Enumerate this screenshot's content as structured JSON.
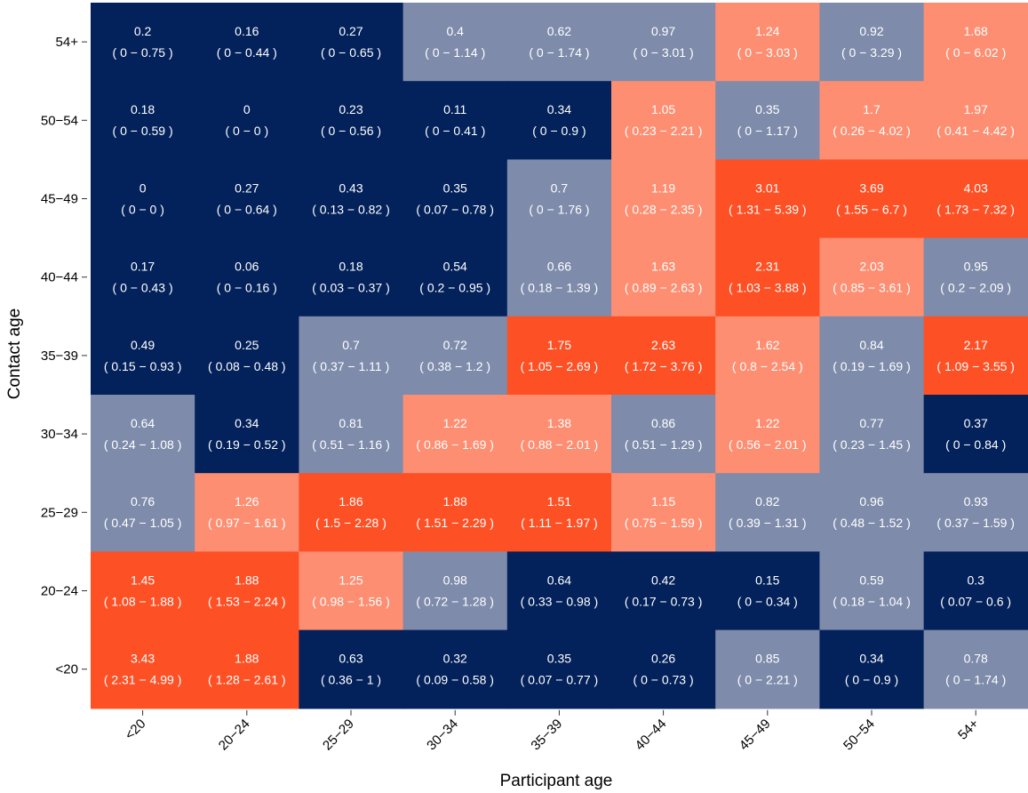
{
  "chart_data": {
    "type": "heatmap",
    "xlabel": "Participant age",
    "ylabel": "Contact age",
    "x_categories": [
      "<20",
      "20−24",
      "25−29",
      "30−34",
      "35−39",
      "40−44",
      "45−49",
      "50−54",
      "54+"
    ],
    "y_categories": [
      "<20",
      "20−24",
      "25−29",
      "30−34",
      "35−39",
      "40−44",
      "45−49",
      "50−54",
      "54+"
    ],
    "palette": {
      "dark": "#03215A",
      "mid": "#7E8BAA",
      "light": "#FD8E72",
      "strong": "#FE5025"
    },
    "rows": [
      {
        "contact_age": "54+",
        "values": [
          0.2,
          0.16,
          0.27,
          0.4,
          0.62,
          0.97,
          1.24,
          0.92,
          1.68
        ],
        "ci": [
          "( 0 − 0.75 )",
          "( 0 − 0.44 )",
          "( 0 − 0.65 )",
          "( 0 − 1.14 )",
          "( 0 − 1.74 )",
          "( 0 − 3.01 )",
          "( 0 − 3.03 )",
          "( 0 − 3.29 )",
          "( 0 − 6.02 )"
        ],
        "colors": [
          "dark",
          "dark",
          "dark",
          "mid",
          "mid",
          "mid",
          "light",
          "mid",
          "light"
        ]
      },
      {
        "contact_age": "50−54",
        "values": [
          0.18,
          0,
          0.23,
          0.11,
          0.34,
          1.05,
          0.35,
          1.7,
          1.97
        ],
        "ci": [
          "( 0 − 0.59 )",
          "( 0 − 0 )",
          "( 0 − 0.56 )",
          "( 0 − 0.41 )",
          "( 0 − 0.9 )",
          "( 0.23 − 2.21 )",
          "( 0 − 1.17 )",
          "( 0.26 − 4.02 )",
          "( 0.41 − 4.42 )"
        ],
        "colors": [
          "dark",
          "dark",
          "dark",
          "dark",
          "dark",
          "light",
          "mid",
          "light",
          "light"
        ]
      },
      {
        "contact_age": "45−49",
        "values": [
          0,
          0.27,
          0.43,
          0.35,
          0.7,
          1.19,
          3.01,
          3.69,
          4.03
        ],
        "ci": [
          "( 0 − 0 )",
          "( 0 − 0.64 )",
          "( 0.13 − 0.82 )",
          "( 0.07 − 0.78 )",
          "( 0 − 1.76 )",
          "( 0.28 − 2.35 )",
          "( 1.31 − 5.39 )",
          "( 1.55 − 6.7 )",
          "( 1.73 − 7.32 )"
        ],
        "colors": [
          "dark",
          "dark",
          "dark",
          "dark",
          "mid",
          "light",
          "strong",
          "strong",
          "strong"
        ]
      },
      {
        "contact_age": "40−44",
        "values": [
          0.17,
          0.06,
          0.18,
          0.54,
          0.66,
          1.63,
          2.31,
          2.03,
          0.95
        ],
        "ci": [
          "( 0 − 0.43 )",
          "( 0 − 0.16 )",
          "( 0.03 − 0.37 )",
          "( 0.2 − 0.95 )",
          "( 0.18 − 1.39 )",
          "( 0.89 − 2.63 )",
          "( 1.03 − 3.88 )",
          "( 0.85 − 3.61 )",
          "( 0.2 − 2.09 )"
        ],
        "colors": [
          "dark",
          "dark",
          "dark",
          "dark",
          "mid",
          "light",
          "strong",
          "light",
          "mid"
        ]
      },
      {
        "contact_age": "35−39",
        "values": [
          0.49,
          0.25,
          0.7,
          0.72,
          1.75,
          2.63,
          1.62,
          0.84,
          2.17
        ],
        "ci": [
          "( 0.15 − 0.93 )",
          "( 0.08 − 0.48 )",
          "( 0.37 − 1.11 )",
          "( 0.38 − 1.2 )",
          "( 1.05 − 2.69 )",
          "( 1.72 − 3.76 )",
          "( 0.8 − 2.54 )",
          "( 0.19 − 1.69 )",
          "( 1.09 − 3.55 )"
        ],
        "colors": [
          "dark",
          "dark",
          "mid",
          "mid",
          "strong",
          "strong",
          "light",
          "mid",
          "strong"
        ]
      },
      {
        "contact_age": "30−34",
        "values": [
          0.64,
          0.34,
          0.81,
          1.22,
          1.38,
          0.86,
          1.22,
          0.77,
          0.37
        ],
        "ci": [
          "( 0.24 − 1.08 )",
          "( 0.19 − 0.52 )",
          "( 0.51 − 1.16 )",
          "( 0.86 − 1.69 )",
          "( 0.88 − 2.01 )",
          "( 0.51 − 1.29 )",
          "( 0.56 − 2.01 )",
          "( 0.23 − 1.45 )",
          "( 0 − 0.84 )"
        ],
        "colors": [
          "mid",
          "dark",
          "mid",
          "light",
          "light",
          "mid",
          "light",
          "mid",
          "dark"
        ]
      },
      {
        "contact_age": "25−29",
        "values": [
          0.76,
          1.26,
          1.86,
          1.88,
          1.51,
          1.15,
          0.82,
          0.96,
          0.93
        ],
        "ci": [
          "( 0.47 − 1.05 )",
          "( 0.97 − 1.61 )",
          "( 1.5 − 2.28 )",
          "( 1.51 − 2.29 )",
          "( 1.11 − 1.97 )",
          "( 0.75 − 1.59 )",
          "( 0.39 − 1.31 )",
          "( 0.48 − 1.52 )",
          "( 0.37 − 1.59 )"
        ],
        "colors": [
          "mid",
          "light",
          "strong",
          "strong",
          "strong",
          "light",
          "mid",
          "mid",
          "mid"
        ]
      },
      {
        "contact_age": "20−24",
        "values": [
          1.45,
          1.88,
          1.25,
          0.98,
          0.64,
          0.42,
          0.15,
          0.59,
          0.3
        ],
        "ci": [
          "( 1.08 − 1.88 )",
          "( 1.53 − 2.24 )",
          "( 0.98 − 1.56 )",
          "( 0.72 − 1.28 )",
          "( 0.33 − 0.98 )",
          "( 0.17 − 0.73 )",
          "( 0 − 0.34 )",
          "( 0.18 − 1.04 )",
          "( 0.07 − 0.6 )"
        ],
        "colors": [
          "strong",
          "strong",
          "light",
          "mid",
          "dark",
          "dark",
          "dark",
          "mid",
          "dark"
        ]
      },
      {
        "contact_age": "<20",
        "values": [
          3.43,
          1.88,
          0.63,
          0.32,
          0.35,
          0.26,
          0.85,
          0.34,
          0.78
        ],
        "ci": [
          "( 2.31 − 4.99 )",
          "( 1.28 − 2.61 )",
          "( 0.36 − 1 )",
          "( 0.09 − 0.58 )",
          "( 0.07 − 0.77 )",
          "( 0 − 0.73 )",
          "( 0 − 2.21 )",
          "( 0 − 0.9 )",
          "( 0 − 1.74 )"
        ],
        "colors": [
          "strong",
          "strong",
          "dark",
          "dark",
          "dark",
          "dark",
          "mid",
          "dark",
          "mid"
        ]
      }
    ]
  }
}
